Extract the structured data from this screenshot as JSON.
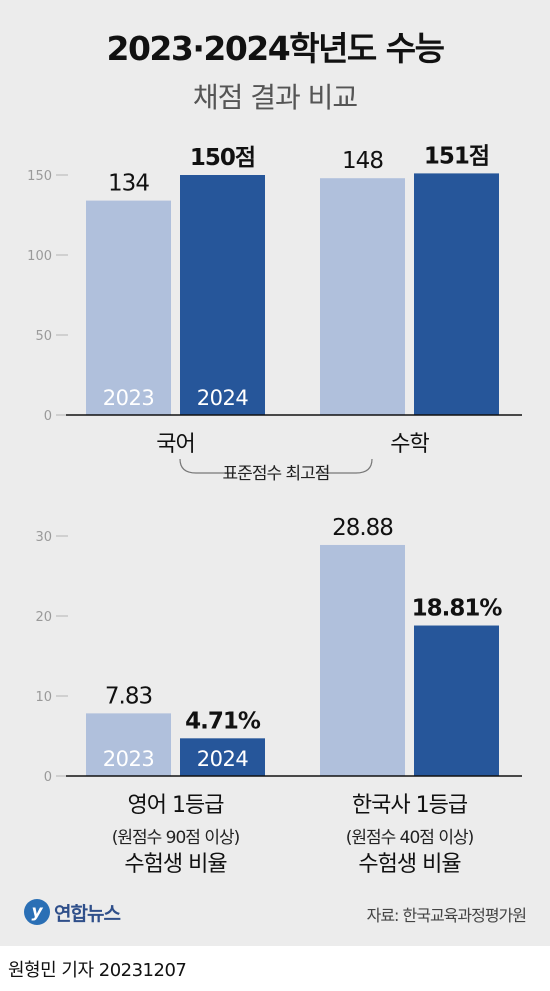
{
  "title": "2023·2024학년도 수능",
  "subtitle": "채점 결과 비교",
  "chart_data": [
    {
      "type": "bar",
      "categories": [
        "국어",
        "수학"
      ],
      "series": [
        {
          "name": "2023",
          "values": [
            134,
            148
          ]
        },
        {
          "name": "2024",
          "values": [
            150,
            151
          ]
        }
      ],
      "value_labels": [
        [
          "134",
          "148"
        ],
        [
          "150점",
          "151점"
        ]
      ],
      "yticks": [
        "150",
        "100",
        "50",
        "0"
      ],
      "ylim": [
        0,
        160
      ],
      "note": "표준점수 최고점",
      "colors": {
        "2023": "#b0c0dc",
        "2024": "#26569a"
      }
    },
    {
      "type": "bar",
      "categories": [
        "영어 1등급",
        "한국사 1등급"
      ],
      "category_sub": [
        [
          "(원점수 90점 이상)",
          "수험생 비율"
        ],
        [
          "(원점수 40점 이상)",
          "수험생 비율"
        ]
      ],
      "series": [
        {
          "name": "2023",
          "values": [
            7.83,
            28.88
          ]
        },
        {
          "name": "2024",
          "values": [
            4.71,
            18.81
          ]
        }
      ],
      "value_labels": [
        [
          "7.83",
          "28.88"
        ],
        [
          "4.71%",
          "18.81%"
        ]
      ],
      "yticks": [
        "30",
        "20",
        "10",
        "0"
      ],
      "ylim": [
        0,
        32
      ],
      "colors": {
        "2023": "#b0c0dc",
        "2024": "#26569a"
      }
    }
  ],
  "logo": {
    "mark": "y",
    "text": "연합뉴스"
  },
  "source": "자료: 한국교육과정평가원",
  "byline": "원형민 기자  20231207"
}
